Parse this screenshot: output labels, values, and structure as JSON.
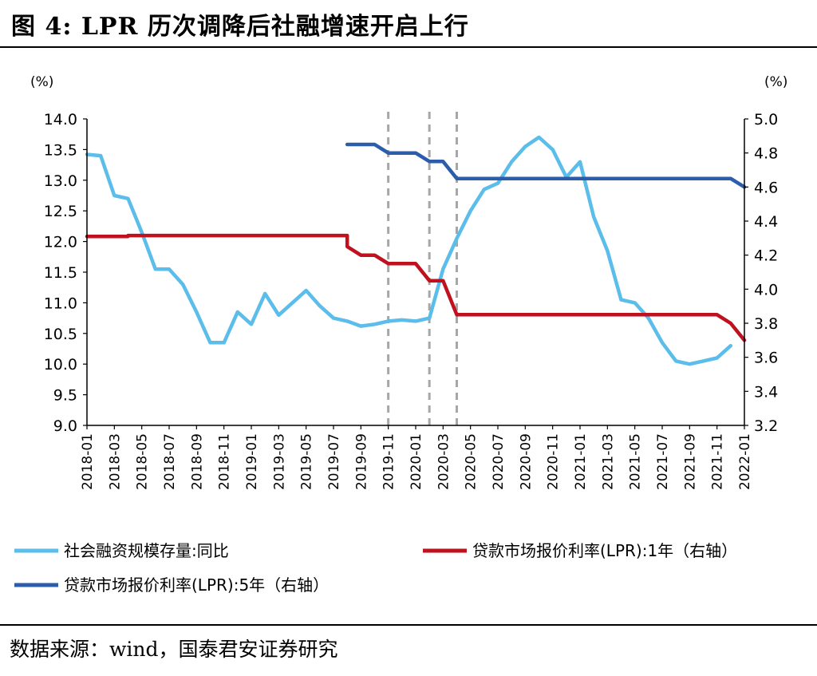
{
  "header": {
    "title": "图 4:  LPR 历次调降后社融增速开启上行"
  },
  "footer": {
    "source": "数据来源：wind，国泰君安证券研究"
  },
  "chart_data": {
    "type": "line",
    "title": "图 4:  LPR 历次调降后社融增速开启上行",
    "left_unit": "(%)",
    "right_unit": "(%)",
    "left_ylim": [
      9.0,
      14.0
    ],
    "right_ylim": [
      3.2,
      5.0
    ],
    "left_ticks": [
      "14.0",
      "13.5",
      "13.0",
      "12.5",
      "12.0",
      "11.5",
      "11.0",
      "10.5",
      "10.0",
      "9.5",
      "9.0"
    ],
    "right_ticks": [
      "5.0",
      "4.8",
      "4.6",
      "4.4",
      "4.2",
      "4.0",
      "3.8",
      "3.6",
      "3.4",
      "3.2"
    ],
    "x_ticks": [
      "2018-01",
      "2018-03",
      "2018-05",
      "2018-07",
      "2018-09",
      "2018-11",
      "2019-01",
      "2019-03",
      "2019-05",
      "2019-07",
      "2019-09",
      "2019-11",
      "2020-01",
      "2020-03",
      "2020-05",
      "2020-07",
      "2020-09",
      "2020-11",
      "2021-01",
      "2021-03",
      "2021-05",
      "2021-07",
      "2021-09",
      "2021-11",
      "2022-01"
    ],
    "x_range": [
      "2018-01",
      "2022-01"
    ],
    "vlines": [
      "2019-11",
      "2020-02",
      "2020-04"
    ],
    "series": [
      {
        "name": "社会融资规模存量:同比",
        "axis": "left",
        "color": "#5BBDEA",
        "points": [
          [
            "2018-01",
            13.42
          ],
          [
            "2018-02",
            13.4
          ],
          [
            "2018-03",
            12.75
          ],
          [
            "2018-04",
            12.7
          ],
          [
            "2018-05",
            12.15
          ],
          [
            "2018-06",
            11.55
          ],
          [
            "2018-07",
            11.55
          ],
          [
            "2018-08",
            11.3
          ],
          [
            "2018-09",
            10.85
          ],
          [
            "2018-10",
            10.35
          ],
          [
            "2018-11",
            10.35
          ],
          [
            "2018-12",
            10.85
          ],
          [
            "2019-01",
            10.65
          ],
          [
            "2019-02",
            11.15
          ],
          [
            "2019-03",
            10.8
          ],
          [
            "2019-04",
            11.0
          ],
          [
            "2019-05",
            11.2
          ],
          [
            "2019-06",
            10.95
          ],
          [
            "2019-07",
            10.75
          ],
          [
            "2019-08",
            10.7
          ],
          [
            "2019-09",
            10.62
          ],
          [
            "2019-10",
            10.65
          ],
          [
            "2019-11",
            10.7
          ],
          [
            "2019-12",
            10.72
          ],
          [
            "2020-01",
            10.7
          ],
          [
            "2020-02",
            10.75
          ],
          [
            "2020-03",
            11.55
          ],
          [
            "2020-04",
            12.05
          ],
          [
            "2020-05",
            12.5
          ],
          [
            "2020-06",
            12.85
          ],
          [
            "2020-07",
            12.95
          ],
          [
            "2020-08",
            13.3
          ],
          [
            "2020-09",
            13.55
          ],
          [
            "2020-10",
            13.7
          ],
          [
            "2020-11",
            13.5
          ],
          [
            "2020-12",
            13.05
          ],
          [
            "2021-01",
            13.3
          ],
          [
            "2021-02",
            12.4
          ],
          [
            "2021-03",
            11.85
          ],
          [
            "2021-04",
            11.05
          ],
          [
            "2021-05",
            11.0
          ],
          [
            "2021-06",
            10.75
          ],
          [
            "2021-07",
            10.35
          ],
          [
            "2021-08",
            10.05
          ],
          [
            "2021-09",
            10.0
          ],
          [
            "2021-10",
            10.05
          ],
          [
            "2021-11",
            10.1
          ],
          [
            "2021-12",
            10.3
          ]
        ]
      },
      {
        "name": "贷款市场报价利率(LPR):1年（右轴）",
        "axis": "right",
        "color": "#C0111F",
        "points": [
          [
            "2018-01",
            4.31
          ],
          [
            "2018-04",
            4.31
          ],
          [
            "2018-04",
            4.315
          ],
          [
            "2019-08",
            4.315
          ],
          [
            "2019-08",
            4.25
          ],
          [
            "2019-09",
            4.2
          ],
          [
            "2019-10",
            4.2
          ],
          [
            "2019-11",
            4.15
          ],
          [
            "2020-01",
            4.15
          ],
          [
            "2020-02",
            4.05
          ],
          [
            "2020-03",
            4.05
          ],
          [
            "2020-04",
            3.85
          ],
          [
            "2021-11",
            3.85
          ],
          [
            "2021-12",
            3.8
          ],
          [
            "2022-01",
            3.7
          ]
        ]
      },
      {
        "name": "贷款市场报价利率(LPR):5年（右轴）",
        "axis": "right",
        "color": "#2B5DAA",
        "points": [
          [
            "2019-08",
            4.85
          ],
          [
            "2019-10",
            4.85
          ],
          [
            "2019-11",
            4.8
          ],
          [
            "2020-01",
            4.8
          ],
          [
            "2020-02",
            4.75
          ],
          [
            "2020-03",
            4.75
          ],
          [
            "2020-04",
            4.65
          ],
          [
            "2021-12",
            4.65
          ],
          [
            "2022-01",
            4.6
          ]
        ]
      }
    ],
    "legend": [
      {
        "label": "社会融资规模存量:同比",
        "color": "#5BBDEA"
      },
      {
        "label": "贷款市场报价利率(LPR):1年（右轴）",
        "color": "#C0111F"
      },
      {
        "label": "贷款市场报价利率(LPR):5年（右轴）",
        "color": "#2B5DAA"
      }
    ],
    "legend_position": "bottom"
  }
}
